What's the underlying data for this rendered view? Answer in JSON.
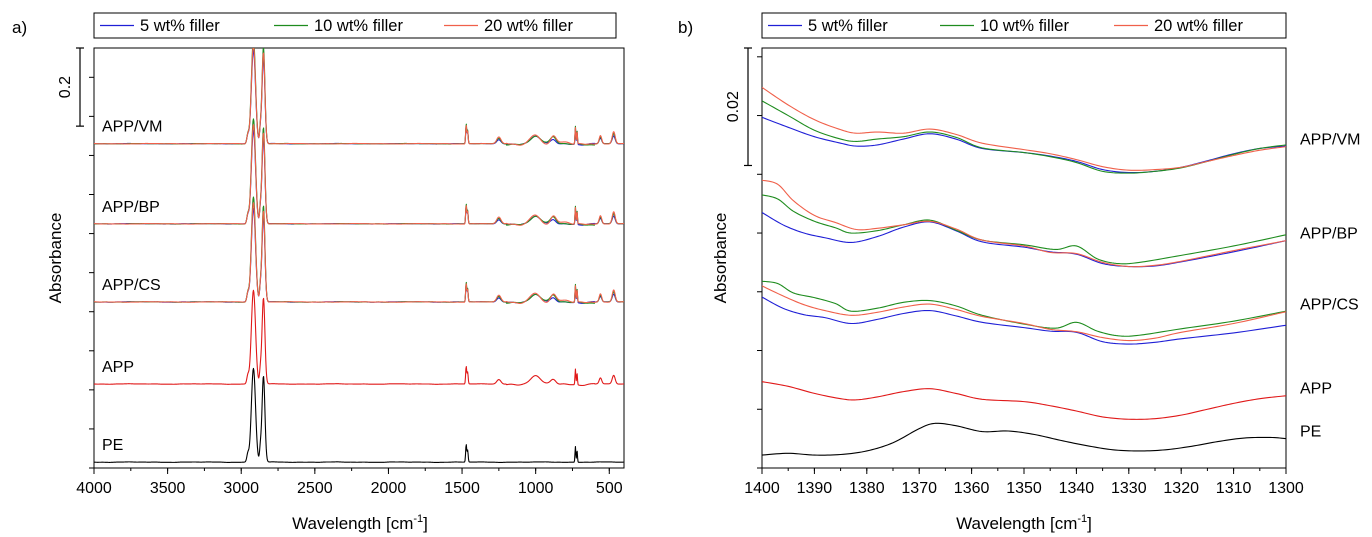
{
  "chart_data": [
    {
      "panel_label": "a)",
      "type": "line",
      "title": "",
      "xlabel": "Wavelength [cm",
      "xlabel_sup": "-1",
      "xlabel_tail": "]",
      "ylabel": "Absorbance",
      "xlim": [
        4000,
        400
      ],
      "xaxis_reversed": true,
      "x_ticks": [
        4000,
        3500,
        3000,
        2500,
        2000,
        1500,
        1000,
        500
      ],
      "ylim": [
        -0.015,
        1.06
      ],
      "y_scale_bar": {
        "label": "0.2",
        "from": 1.06,
        "to": 0.86
      },
      "grid": false,
      "legend": {
        "placement": "top",
        "entries": [
          "5 wt% filler",
          "10 wt% filler",
          "20 wt% filler"
        ]
      },
      "series_colors": {
        "5 wt% filler": "#1f1fd6",
        "10 wt% filler": "#1e8c1e",
        "20 wt% filler": "#f0604a",
        "APP": "#e01818",
        "PE": "#000000"
      },
      "stacks": [
        {
          "label": "PE",
          "baseline": 0.0,
          "series": [
            "PE"
          ]
        },
        {
          "label": "APP",
          "baseline": 0.2,
          "series": [
            "APP"
          ]
        },
        {
          "label": "APP/CS",
          "baseline": 0.41,
          "series": [
            "5 wt% filler",
            "10 wt% filler",
            "20 wt% filler"
          ]
        },
        {
          "label": "APP/BP",
          "baseline": 0.61,
          "series": [
            "5 wt% filler",
            "10 wt% filler",
            "20 wt% filler"
          ]
        },
        {
          "label": "APP/VM",
          "baseline": 0.815,
          "series": [
            "5 wt% filler",
            "10 wt% filler",
            "20 wt% filler"
          ]
        }
      ],
      "peaks": [
        {
          "x": 2917,
          "w": 20,
          "h": 0.24
        },
        {
          "x": 2849,
          "w": 14,
          "h": 0.22
        },
        {
          "x": 2870,
          "w": 8,
          "h": 0.03
        },
        {
          "x": 2955,
          "w": 10,
          "h": 0.02
        },
        {
          "x": 1472,
          "w": 5,
          "h": 0.045
        },
        {
          "x": 1462,
          "w": 5,
          "h": 0.03
        },
        {
          "x": 730,
          "w": 4,
          "h": 0.04
        },
        {
          "x": 719,
          "w": 4,
          "h": 0.03
        }
      ]
    },
    {
      "panel_label": "b)",
      "type": "line",
      "title": "",
      "xlabel": "Wavelength [cm",
      "xlabel_sup": "-1",
      "xlabel_tail": "]",
      "ylabel": "Absorbance",
      "xlim": [
        1400,
        1300
      ],
      "xaxis_reversed": true,
      "x_ticks": [
        1400,
        1390,
        1380,
        1370,
        1360,
        1350,
        1340,
        1330,
        1320,
        1310,
        1300
      ],
      "ylim": [
        0.0,
        0.0715
      ],
      "y_scale_bar": {
        "label": "0.02",
        "from": 0.0715,
        "to": 0.0515
      },
      "grid": false,
      "legend": {
        "placement": "top",
        "entries": [
          "5 wt% filler",
          "10 wt% filler",
          "20 wt% filler"
        ]
      },
      "series_colors": {
        "5 wt% filler": "#1f1fd6",
        "10 wt% filler": "#1e8c1e",
        "20 wt% filler": "#f0604a",
        "APP": "#e01818",
        "PE": "#000000"
      },
      "stacks": [
        {
          "label": "PE",
          "series": [
            {
              "name": "PE",
              "x": [
                1400,
                1395,
                1390,
                1385,
                1380,
                1375,
                1370,
                1367,
                1363,
                1358,
                1353,
                1348,
                1343,
                1338,
                1333,
                1328,
                1323,
                1318,
                1313,
                1308,
                1303,
                1300
              ],
              "y": [
                0.0022,
                0.0025,
                0.0022,
                0.0023,
                0.0029,
                0.0043,
                0.0067,
                0.0076,
                0.0072,
                0.0062,
                0.0063,
                0.0057,
                0.0047,
                0.0038,
                0.0031,
                0.0029,
                0.0031,
                0.0037,
                0.0045,
                0.0051,
                0.0052,
                0.005
              ]
            }
          ]
        },
        {
          "label": "APP",
          "series": [
            {
              "name": "APP",
              "x": [
                1400,
                1395,
                1390,
                1385,
                1382,
                1378,
                1373,
                1368,
                1363,
                1358,
                1350,
                1345,
                1340,
                1335,
                1330,
                1325,
                1320,
                1315,
                1310,
                1305,
                1300
              ],
              "y": [
                0.0147,
                0.0139,
                0.0127,
                0.0118,
                0.0116,
                0.0121,
                0.013,
                0.0135,
                0.0127,
                0.0117,
                0.0113,
                0.0106,
                0.0097,
                0.0087,
                0.0083,
                0.0084,
                0.009,
                0.01,
                0.011,
                0.0118,
                0.0123
              ]
            }
          ]
        },
        {
          "label": "APP/CS",
          "series": [
            {
              "name": "5 wt% filler",
              "x": [
                1400,
                1396,
                1392,
                1388,
                1383,
                1378,
                1373,
                1368,
                1363,
                1358,
                1350,
                1345,
                1340,
                1335,
                1330,
                1325,
                1320,
                1310,
                1300
              ],
              "y": [
                0.0291,
                0.0272,
                0.0261,
                0.0256,
                0.0246,
                0.0253,
                0.0263,
                0.0268,
                0.0259,
                0.0248,
                0.0239,
                0.0233,
                0.0231,
                0.0215,
                0.0211,
                0.0214,
                0.022,
                0.023,
                0.0243
              ]
            },
            {
              "name": "10 wt% filler",
              "x": [
                1400,
                1397,
                1394,
                1390,
                1386,
                1383,
                1378,
                1373,
                1368,
                1363,
                1358,
                1350,
                1344,
                1340,
                1336,
                1332,
                1328,
                1320,
                1310,
                1300
              ],
              "y": [
                0.0318,
                0.0314,
                0.0298,
                0.029,
                0.028,
                0.0267,
                0.0272,
                0.0282,
                0.0285,
                0.0276,
                0.026,
                0.0245,
                0.0238,
                0.0248,
                0.0233,
                0.0225,
                0.0226,
                0.0237,
                0.025,
                0.0267
              ]
            },
            {
              "name": "20 wt% filler",
              "x": [
                1400,
                1396,
                1392,
                1388,
                1383,
                1378,
                1373,
                1368,
                1363,
                1358,
                1350,
                1345,
                1340,
                1335,
                1330,
                1325,
                1320,
                1310,
                1300
              ],
              "y": [
                0.031,
                0.0293,
                0.0278,
                0.0268,
                0.026,
                0.0265,
                0.0274,
                0.0279,
                0.027,
                0.0258,
                0.0246,
                0.0236,
                0.0232,
                0.0222,
                0.0217,
                0.0221,
                0.0231,
                0.0246,
                0.0266
              ]
            }
          ]
        },
        {
          "label": "APP/BP",
          "series": [
            {
              "name": "5 wt% filler",
              "x": [
                1400,
                1396,
                1392,
                1388,
                1383,
                1378,
                1373,
                1368,
                1363,
                1358,
                1350,
                1345,
                1340,
                1335,
                1330,
                1325,
                1320,
                1310,
                1300
              ],
              "y": [
                0.0435,
                0.0414,
                0.04,
                0.0392,
                0.0384,
                0.0394,
                0.041,
                0.0419,
                0.0404,
                0.0385,
                0.0376,
                0.0368,
                0.0364,
                0.0348,
                0.0343,
                0.0344,
                0.0351,
                0.0368,
                0.0387
              ]
            },
            {
              "name": "10 wt% filler",
              "x": [
                1400,
                1397,
                1394,
                1390,
                1386,
                1383,
                1378,
                1373,
                1368,
                1363,
                1358,
                1350,
                1344,
                1340,
                1336,
                1332,
                1328,
                1320,
                1310,
                1300
              ],
              "y": [
                0.0465,
                0.0458,
                0.0437,
                0.042,
                0.0409,
                0.04,
                0.0404,
                0.0414,
                0.0422,
                0.0405,
                0.0388,
                0.038,
                0.0372,
                0.0378,
                0.0356,
                0.0348,
                0.035,
                0.0362,
                0.0378,
                0.0397
              ]
            },
            {
              "name": "20 wt% filler",
              "x": [
                1400,
                1397,
                1394,
                1390,
                1386,
                1382,
                1378,
                1373,
                1368,
                1363,
                1358,
                1350,
                1345,
                1340,
                1335,
                1330,
                1325,
                1320,
                1310,
                1300
              ],
              "y": [
                0.049,
                0.0483,
                0.0455,
                0.043,
                0.0418,
                0.0406,
                0.0408,
                0.0414,
                0.042,
                0.0407,
                0.0388,
                0.0378,
                0.0367,
                0.0365,
                0.035,
                0.0343,
                0.0345,
                0.0352,
                0.037,
                0.0387
              ]
            }
          ]
        },
        {
          "label": "APP/VM",
          "series": [
            {
              "name": "5 wt% filler",
              "x": [
                1400,
                1395,
                1390,
                1385,
                1382,
                1378,
                1373,
                1368,
                1363,
                1358,
                1350,
                1345,
                1340,
                1335,
                1330,
                1325,
                1320,
                1315,
                1310,
                1305,
                1300
              ],
              "y": [
                0.0597,
                0.058,
                0.0564,
                0.0553,
                0.0548,
                0.055,
                0.056,
                0.0569,
                0.056,
                0.0544,
                0.0537,
                0.0531,
                0.0522,
                0.0508,
                0.0503,
                0.0505,
                0.0512,
                0.0523,
                0.0535,
                0.0544,
                0.0548
              ]
            },
            {
              "name": "10 wt% filler",
              "x": [
                1400,
                1395,
                1390,
                1385,
                1382,
                1378,
                1373,
                1368,
                1363,
                1358,
                1350,
                1345,
                1340,
                1335,
                1330,
                1325,
                1320,
                1315,
                1310,
                1305,
                1300
              ],
              "y": [
                0.0625,
                0.06,
                0.0575,
                0.056,
                0.0556,
                0.056,
                0.0564,
                0.0572,
                0.0563,
                0.0545,
                0.0537,
                0.053,
                0.052,
                0.0505,
                0.0502,
                0.0505,
                0.0511,
                0.0522,
                0.0534,
                0.0544,
                0.055
              ]
            },
            {
              "name": "20 wt% filler",
              "x": [
                1400,
                1395,
                1390,
                1385,
                1382,
                1378,
                1373,
                1368,
                1363,
                1358,
                1350,
                1345,
                1340,
                1335,
                1330,
                1325,
                1320,
                1315,
                1310,
                1305,
                1300
              ],
              "y": [
                0.0648,
                0.0618,
                0.0593,
                0.0576,
                0.057,
                0.0572,
                0.057,
                0.0577,
                0.0568,
                0.0553,
                0.0542,
                0.0535,
                0.0525,
                0.0513,
                0.0507,
                0.0508,
                0.0512,
                0.0522,
                0.0532,
                0.0541,
                0.0547
              ]
            }
          ]
        }
      ]
    }
  ]
}
